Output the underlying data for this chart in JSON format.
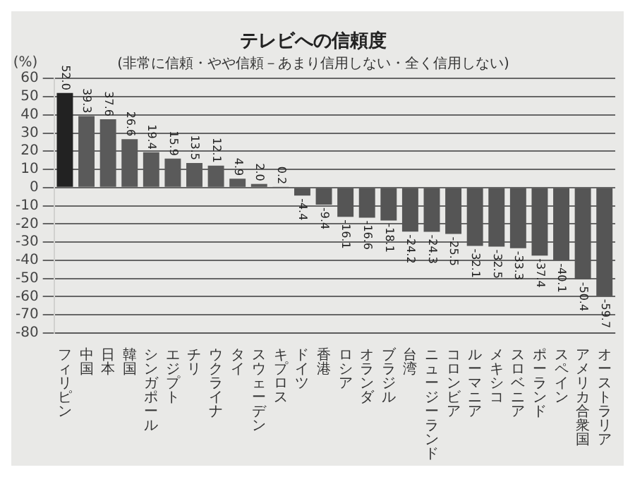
{
  "chart_data": {
    "type": "bar",
    "title": "テレビへの信頼度",
    "subtitle": "(非常に信頼・やや信頼－あまり信用しない・全く信用しない)",
    "ylabel": "(%)",
    "categories": [
      "フィリピン",
      "中国",
      "日本",
      "韓国",
      "シンガポール",
      "エジプト",
      "チリ",
      "ウクライナ",
      "タイ",
      "スウェーデン",
      "キプロス",
      "ドイツ",
      "香港",
      "ロシア",
      "オランダ",
      "ブラジル",
      "台湾",
      "ニュージーランド",
      "コロンビア",
      "ルーマニア",
      "メキシコ",
      "スロベニア",
      "ポーランド",
      "スペイン",
      "アメリカ合衆国",
      "オーストラリア"
    ],
    "values": [
      52.0,
      39.3,
      37.6,
      26.6,
      19.4,
      15.9,
      13.5,
      12.1,
      4.9,
      2.0,
      0.2,
      -4.4,
      -9.4,
      -16.1,
      -16.6,
      -18.1,
      -24.2,
      -24.3,
      -25.5,
      -32.1,
      -32.5,
      -33.3,
      -37.4,
      -40.1,
      -50.4,
      -59.7
    ],
    "colors": [
      "#222222",
      "#5a5a5a",
      "#5a5a5a",
      "#5a5a5a",
      "#5a5a5a",
      "#5a5a5a",
      "#5a5a5a",
      "#5a5a5a",
      "#5a5a5a",
      "#5a5a5a",
      "#5a5a5a",
      "#555555",
      "#555555",
      "#555555",
      "#555555",
      "#555555",
      "#555555",
      "#555555",
      "#555555",
      "#555555",
      "#555555",
      "#555555",
      "#555555",
      "#555555",
      "#555555",
      "#555555"
    ],
    "ylim": [
      -80,
      60
    ],
    "yticks": [
      -80,
      -70,
      -60,
      -50,
      -40,
      -30,
      -20,
      -10,
      0,
      10,
      20,
      30,
      40,
      50,
      60
    ],
    "grid": "y",
    "value_labels": [
      "52.0",
      "39.3",
      "37.6",
      "26.6",
      "19.4",
      "15.9",
      "13.5",
      "12.1",
      "4.9",
      "2.0",
      "0.2",
      "-4.4",
      "-9.4",
      "-16.1",
      "-16.6",
      "-18.1",
      "-24.2",
      "-24.3",
      "-25.5",
      "-32.1",
      "-32.5",
      "-33.3",
      "-37.4",
      "-40.1",
      "-50.4",
      "-59.7"
    ]
  }
}
